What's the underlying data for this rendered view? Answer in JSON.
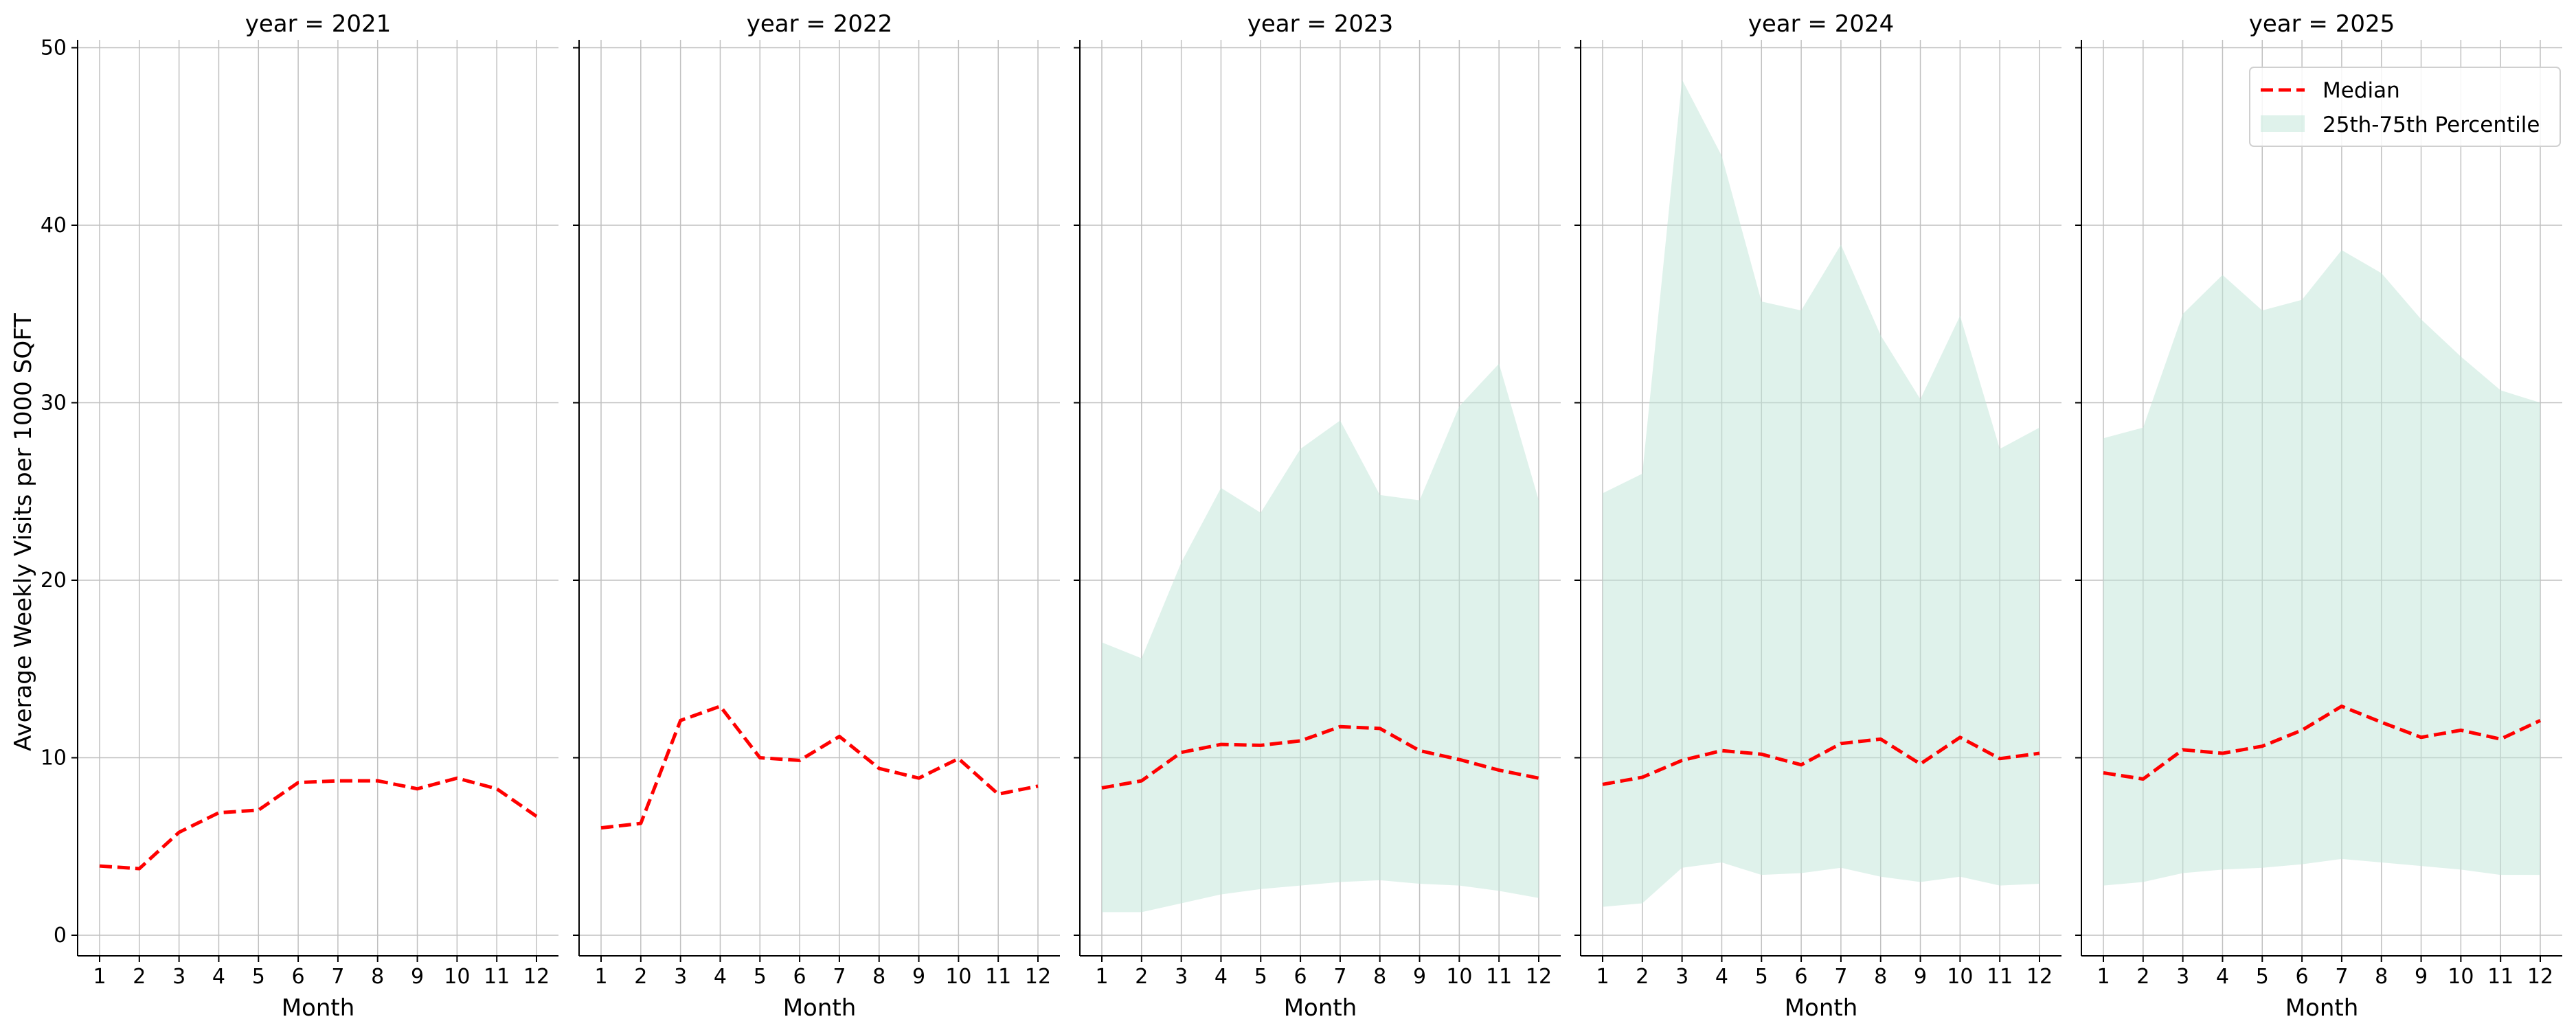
{
  "chart_data": {
    "type": "line",
    "ylabel": "Average Weekly Visits per 1000 SQFT",
    "xlabel": "Month",
    "ylim": [
      0,
      50
    ],
    "yticks": [
      0,
      10,
      20,
      30,
      40,
      50
    ],
    "x": [
      1,
      2,
      3,
      4,
      5,
      6,
      7,
      8,
      9,
      10,
      11,
      12
    ],
    "grid": true,
    "legend_position": "top-right",
    "legend": {
      "median_label": "Median",
      "band_label": "25th-75th Percentile"
    },
    "colors": {
      "median": "#ff0000",
      "band": "#bfe6d8",
      "grid": "#c0c0c0"
    },
    "panels": [
      {
        "title": "year = 2021",
        "median": [
          3.9,
          3.75,
          5.8,
          6.9,
          7.05,
          8.6,
          8.7,
          8.7,
          8.25,
          8.85,
          8.25,
          6.7
        ],
        "p25": null,
        "p75": null
      },
      {
        "title": "year = 2022",
        "median": [
          6.05,
          6.3,
          12.1,
          12.9,
          10.0,
          9.85,
          11.2,
          9.4,
          8.85,
          9.95,
          7.95,
          8.4
        ],
        "p25": null,
        "p75": null
      },
      {
        "title": "year = 2023",
        "median": [
          8.3,
          8.7,
          10.3,
          10.75,
          10.7,
          10.95,
          11.75,
          11.65,
          10.4,
          9.9,
          9.3,
          8.85
        ],
        "p25": [
          1.3,
          1.3,
          1.8,
          2.3,
          2.6,
          2.8,
          3.0,
          3.1,
          2.9,
          2.8,
          2.5,
          2.1
        ],
        "p75": [
          16.5,
          15.6,
          21.0,
          25.2,
          23.8,
          27.4,
          29.0,
          24.8,
          24.5,
          29.8,
          32.2,
          24.5
        ]
      },
      {
        "title": "year = 2024",
        "median": [
          8.5,
          8.9,
          9.85,
          10.4,
          10.2,
          9.6,
          10.8,
          11.05,
          9.65,
          11.15,
          9.95,
          10.25
        ],
        "p25": [
          1.6,
          1.8,
          3.8,
          4.1,
          3.4,
          3.5,
          3.8,
          3.3,
          3.0,
          3.3,
          2.8,
          2.9
        ],
        "p75": [
          24.9,
          26.0,
          48.2,
          43.9,
          35.7,
          35.2,
          38.9,
          33.8,
          30.2,
          34.9,
          27.4,
          28.6
        ]
      },
      {
        "title": "year = 2025",
        "median": [
          9.15,
          8.8,
          10.45,
          10.25,
          10.65,
          11.55,
          12.9,
          12.0,
          11.15,
          11.55,
          11.05,
          12.1
        ],
        "p25": [
          2.8,
          3.0,
          3.5,
          3.7,
          3.8,
          4.0,
          4.3,
          4.1,
          3.9,
          3.7,
          3.4,
          3.4
        ],
        "p75": [
          28.0,
          28.6,
          35.0,
          37.2,
          35.2,
          35.8,
          38.6,
          37.3,
          34.7,
          32.6,
          30.7,
          30.0
        ]
      }
    ]
  }
}
